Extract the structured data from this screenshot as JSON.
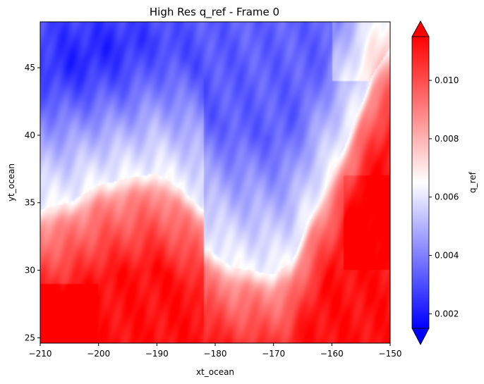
{
  "chart_data": {
    "type": "heatmap",
    "title": "High Res q_ref - Frame 0",
    "xlabel": "xt_ocean",
    "ylabel": "yt_ocean",
    "xlim": [
      -210,
      -150
    ],
    "ylim": [
      24.6,
      48.4
    ],
    "xticks": [
      -210,
      -200,
      -190,
      -180,
      -170,
      -160,
      -150
    ],
    "xtick_labels": [
      "−210",
      "−200",
      "−190",
      "−180",
      "−170",
      "−160",
      "−150"
    ],
    "yticks": [
      25,
      30,
      35,
      40,
      45
    ],
    "ytick_labels": [
      "25",
      "30",
      "35",
      "40",
      "45"
    ],
    "colorbar": {
      "label": "q_ref",
      "colormap": "bwr",
      "vmin": 0.0015,
      "vmax": 0.0115,
      "extend": "both",
      "ticks": [
        0.002,
        0.004,
        0.006,
        0.008,
        0.01
      ],
      "tick_labels": [
        "0.002",
        "0.004",
        "0.006",
        "0.008",
        "0.010"
      ]
    },
    "field_description": {
      "front_west_lat_at_x": [
        [
          -210,
          34.5
        ],
        [
          -205,
          35.0
        ],
        [
          -200,
          36.3
        ],
        [
          -195,
          36.8
        ],
        [
          -190,
          37.2
        ],
        [
          -186,
          36.0
        ],
        [
          -182,
          34.5
        ]
      ],
      "front_channel_bottom": [
        [
          -181,
          31.5
        ],
        [
          -177,
          30.2
        ],
        [
          -170,
          29.7
        ],
        [
          -167,
          30.5
        ]
      ],
      "front_east_lat_at_x": [
        [
          -167,
          30.5
        ],
        [
          -164,
          33.5
        ],
        [
          -160,
          37.0
        ],
        [
          -156,
          41.0
        ],
        [
          -153,
          44.5
        ],
        [
          -150,
          46.5
        ]
      ],
      "low_values_region": "north-west and central channel (about 0.002-0.006)",
      "high_values_region": "south-west and south-east (about 0.009-0.0115)"
    }
  }
}
